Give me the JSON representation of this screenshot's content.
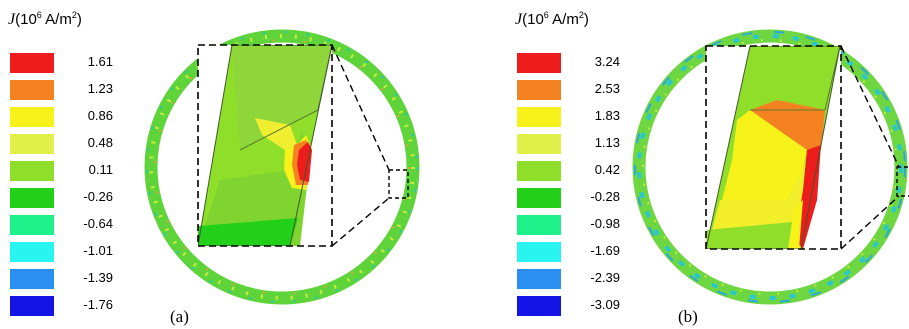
{
  "panels": [
    {
      "id": "a",
      "caption": "(a)",
      "legend": {
        "symbol": "J",
        "unit_prefix": "(10",
        "exponent": "6",
        "unit_mid": " A/m",
        "unit_exponent": "2",
        "unit_suffix": ")",
        "entries": [
          {
            "value": "1.61",
            "color": "#ee1c1c"
          },
          {
            "value": "1.23",
            "color": "#f58220"
          },
          {
            "value": "0.86",
            "color": "#f7f21a"
          },
          {
            "value": "0.48",
            "color": "#e0ef4a"
          },
          {
            "value": "0.11",
            "color": "#8fdf2a"
          },
          {
            "value": "-0.26",
            "color": "#22d01a"
          },
          {
            "value": "-0.64",
            "color": "#1ef08a"
          },
          {
            "value": "-1.01",
            "color": "#29f4f0"
          },
          {
            "value": "-1.39",
            "color": "#2a8ff0"
          },
          {
            "value": "-1.76",
            "color": "#1414e6"
          }
        ]
      }
    },
    {
      "id": "b",
      "caption": "(b)",
      "legend": {
        "symbol": "J",
        "unit_prefix": "(10",
        "exponent": "6",
        "unit_mid": " A/m",
        "unit_exponent": "2",
        "unit_suffix": ")",
        "entries": [
          {
            "value": "3.24",
            "color": "#ee1c1c"
          },
          {
            "value": "2.53",
            "color": "#f58220"
          },
          {
            "value": "1.83",
            "color": "#f7f21a"
          },
          {
            "value": "1.13",
            "color": "#e0ef4a"
          },
          {
            "value": "0.42",
            "color": "#8fdf2a"
          },
          {
            "value": "-0.28",
            "color": "#22d01a"
          },
          {
            "value": "-0.98",
            "color": "#1ef08a"
          },
          {
            "value": "-1.69",
            "color": "#29f4f0"
          },
          {
            "value": "-2.39",
            "color": "#2a8ff0"
          },
          {
            "value": "-3.09",
            "color": "#1414e6"
          }
        ]
      }
    }
  ]
}
